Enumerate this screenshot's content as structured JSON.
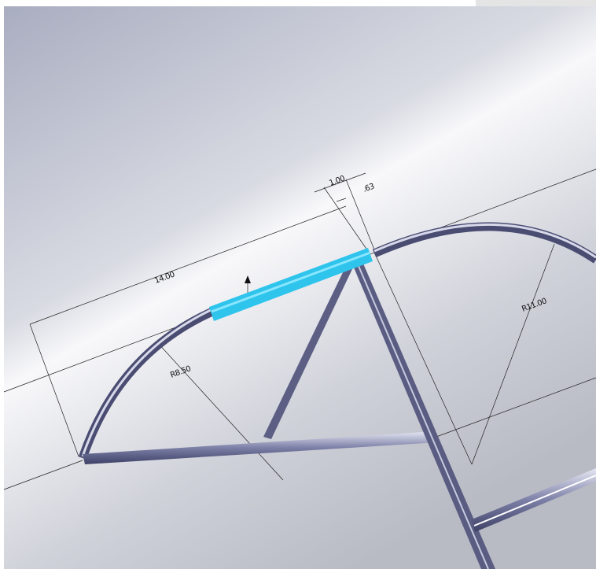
{
  "dimensions": {
    "length": "14.00",
    "offset_a": "1.00",
    "offset_b": ".63",
    "radius_left": "R8.50",
    "radius_right": "R11.00"
  }
}
